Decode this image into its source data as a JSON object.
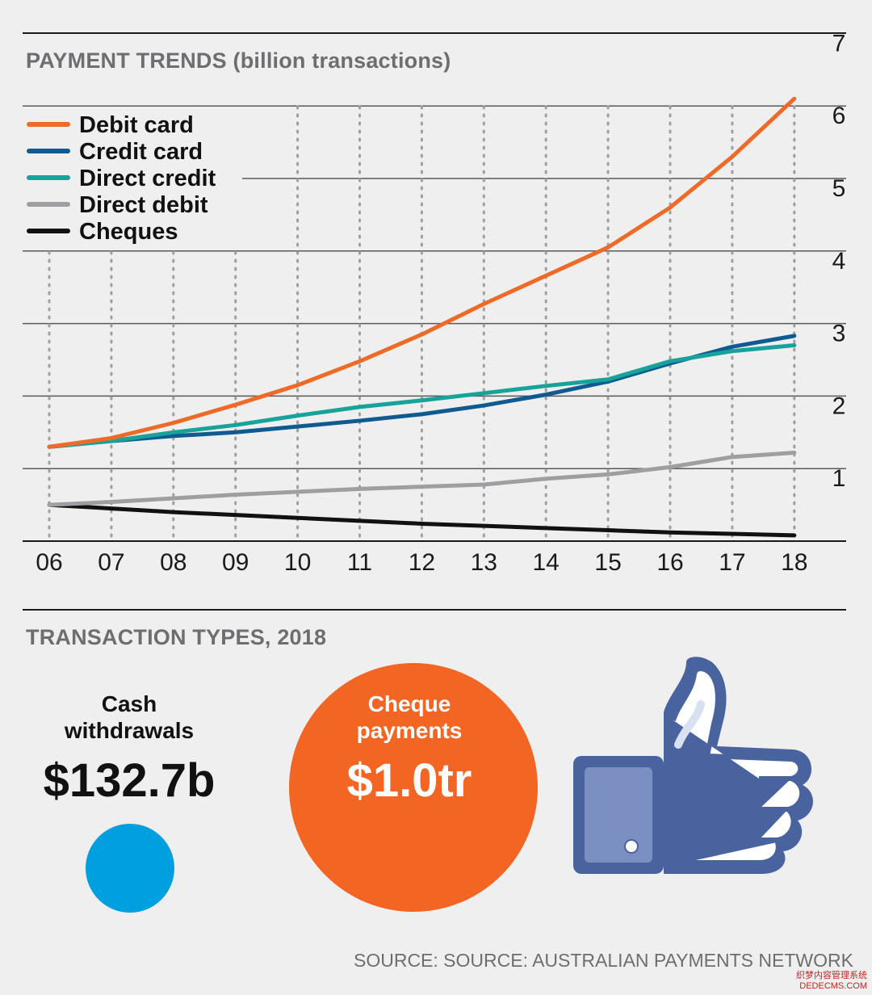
{
  "chart_data": {
    "type": "line",
    "title": "PAYMENT TRENDS (billion transactions)",
    "categories": [
      "06",
      "07",
      "08",
      "09",
      "10",
      "11",
      "12",
      "13",
      "14",
      "15",
      "16",
      "17",
      "18"
    ],
    "ylim": [
      0,
      7
    ],
    "yticks": [
      "1",
      "2",
      "3",
      "4",
      "5",
      "6",
      "7"
    ],
    "grid": "dotted vertical, solid horizontal",
    "legend": "top-left",
    "series": [
      {
        "name": "Debit card",
        "color": "#ef6a26",
        "values": [
          1.3,
          1.42,
          1.63,
          1.88,
          2.15,
          2.48,
          2.85,
          3.27,
          3.66,
          4.05,
          4.6,
          5.3,
          6.1
        ]
      },
      {
        "name": "Credit card",
        "color": "#0f5b91",
        "values": [
          1.3,
          1.38,
          1.45,
          1.5,
          1.58,
          1.66,
          1.75,
          1.87,
          2.02,
          2.2,
          2.45,
          2.68,
          2.83
        ]
      },
      {
        "name": "Direct credit",
        "color": "#17a39a",
        "values": [
          1.3,
          1.38,
          1.5,
          1.6,
          1.73,
          1.85,
          1.94,
          2.04,
          2.14,
          2.23,
          2.48,
          2.62,
          2.7
        ]
      },
      {
        "name": "Direct debit",
        "color": "#9d9fa2",
        "values": [
          0.5,
          0.54,
          0.59,
          0.64,
          0.68,
          0.72,
          0.75,
          0.78,
          0.86,
          0.92,
          1.02,
          1.16,
          1.22
        ]
      },
      {
        "name": "Cheques",
        "color": "#111111",
        "values": [
          0.5,
          0.45,
          0.4,
          0.36,
          0.32,
          0.28,
          0.24,
          0.21,
          0.18,
          0.15,
          0.12,
          0.1,
          0.08
        ]
      }
    ]
  },
  "transactions": {
    "title": "TRANSACTION TYPES, 2018",
    "cash": {
      "label_line1": "Cash",
      "label_line2": "withdrawals",
      "value": "$132.7b",
      "color": "#009fdf"
    },
    "cheque": {
      "label_line1": "Cheque",
      "label_line2": "payments",
      "value": "$1.0tr",
      "color": "#f26522"
    },
    "thumb_icon": "facebook-like-thumbs-up-icon"
  },
  "source": "SOURCE: SOURCE: AUSTRALIAN PAYMENTS NETWORK",
  "watermark": {
    "line1": "织梦内容管理系统",
    "line2": "DEDECMS.COM"
  }
}
